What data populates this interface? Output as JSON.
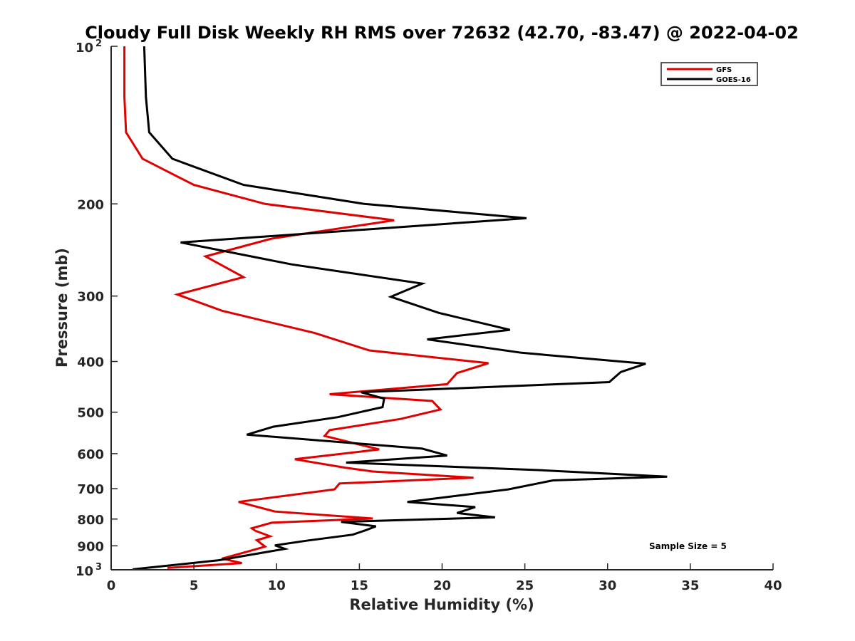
{
  "chart_data": {
    "type": "line",
    "orientation": "vertical-profile",
    "title": "Cloudy Full Disk Weekly RH RMS over 72632 (42.70, -83.47) @ 2022-04-02",
    "xlabel": "Relative Humidity (%)",
    "ylabel": "Pressure (mb)",
    "xlim": [
      0,
      40
    ],
    "ylim": [
      1000,
      100
    ],
    "yscale": "log",
    "y_reversed": true,
    "x_ticks": [
      {
        "value": 0,
        "label": "0"
      },
      {
        "value": 5,
        "label": "5"
      },
      {
        "value": 10,
        "label": "10"
      },
      {
        "value": 15,
        "label": "15"
      },
      {
        "value": 20,
        "label": "20"
      },
      {
        "value": 25,
        "label": "25"
      },
      {
        "value": 30,
        "label": "30"
      },
      {
        "value": 35,
        "label": "35"
      },
      {
        "value": 40,
        "label": "40"
      }
    ],
    "y_ticks": [
      {
        "value": 100,
        "base": "10",
        "exp": "2"
      },
      {
        "value": 200,
        "label": "200"
      },
      {
        "value": 300,
        "label": "300"
      },
      {
        "value": 400,
        "label": "400"
      },
      {
        "value": 500,
        "label": "500"
      },
      {
        "value": 600,
        "label": "600"
      },
      {
        "value": 700,
        "label": "700"
      },
      {
        "value": 800,
        "label": "800"
      },
      {
        "value": 900,
        "label": "900"
      },
      {
        "value": 1000,
        "base": "10",
        "exp": "3"
      }
    ],
    "grid": false,
    "legend_position": "top-right",
    "annotation": "Sample Size = 5",
    "series": [
      {
        "name": "GFS",
        "color": "#e00000",
        "x": [
          0.8,
          0.8,
          0.9,
          1.9,
          5.0,
          9.3,
          17.1,
          9.7,
          5.7,
          8.0,
          4.0,
          6.7,
          12.3,
          15.6,
          22.8,
          20.9,
          20.3,
          13.2,
          19.4,
          19.9,
          17.5,
          13.2,
          12.9,
          16.2,
          11.1,
          14.1,
          15.8,
          21.9,
          13.8,
          13.5,
          7.7,
          9.9,
          15.8,
          9.7,
          8.5,
          8.7,
          9.6,
          8.8,
          9.3,
          8.4,
          6.7,
          7.9,
          3.4
        ],
        "y": [
          100,
          125,
          146,
          164,
          184,
          200,
          215,
          233,
          252,
          276,
          298,
          320,
          353,
          381,
          403,
          421,
          442,
          462,
          476,
          494,
          515,
          541,
          555,
          589,
          615,
          638,
          649,
          667,
          684,
          702,
          742,
          774,
          798,
          813,
          833,
          842,
          863,
          878,
          903,
          920,
          952,
          971,
          992
        ]
      },
      {
        "name": "GOES-16",
        "color": "#000000",
        "x": [
          2.0,
          2.1,
          2.3,
          3.7,
          8.0,
          15.3,
          25.1,
          4.2,
          10.9,
          18.8,
          16.9,
          19.8,
          24.1,
          19.1,
          24.8,
          32.3,
          30.8,
          30.1,
          15.1,
          16.5,
          16.4,
          13.7,
          9.8,
          8.2,
          18.8,
          20.3,
          14.2,
          25.8,
          33.6,
          26.7,
          24.0,
          17.9,
          22.0,
          20.9,
          23.2,
          13.9,
          16.0,
          15.4,
          14.6,
          11.8,
          9.9,
          10.5,
          6.5,
          1.3
        ],
        "y": [
          100,
          125,
          146,
          164,
          184,
          200,
          213,
          237,
          261,
          284,
          301,
          323,
          348,
          363,
          385,
          404,
          419,
          438,
          458,
          471,
          489,
          511,
          533,
          552,
          587,
          605,
          624,
          645,
          664,
          675,
          702,
          742,
          759,
          779,
          794,
          810,
          826,
          840,
          857,
          880,
          898,
          912,
          959,
          998
        ]
      }
    ]
  }
}
